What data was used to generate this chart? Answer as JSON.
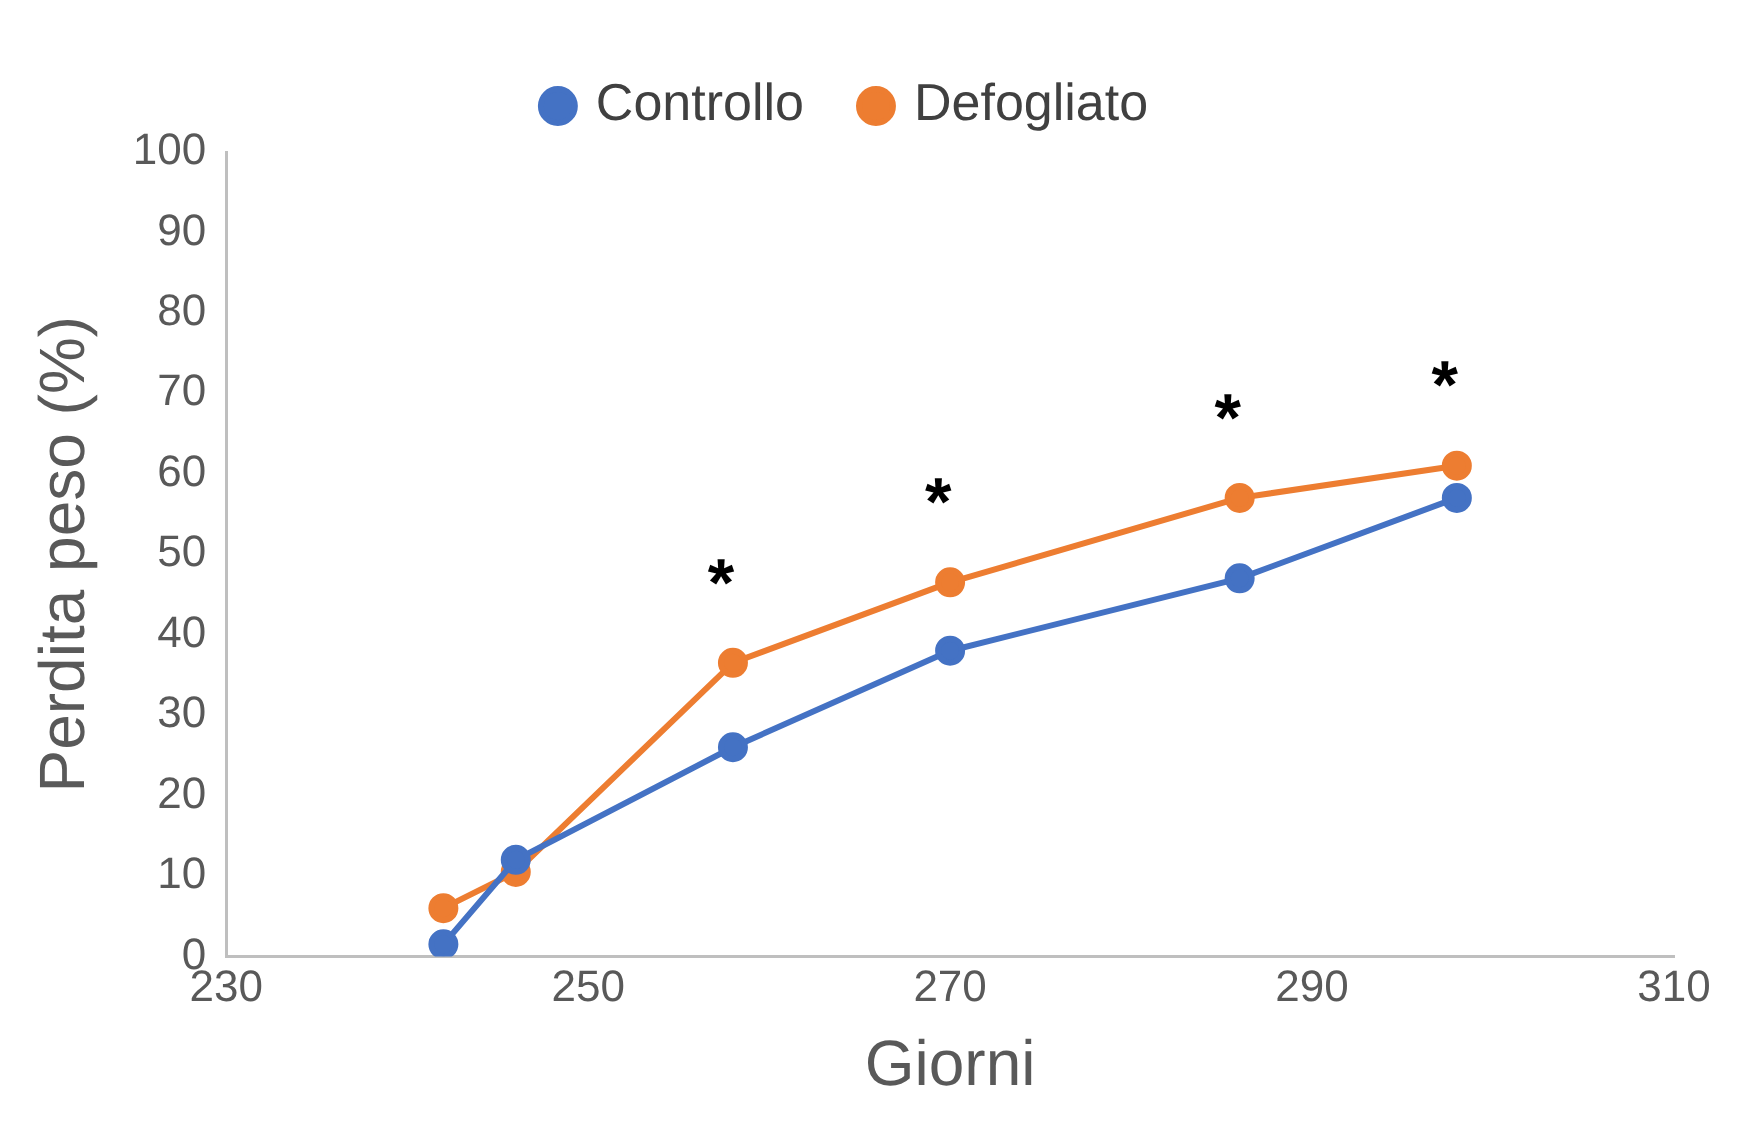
{
  "chart_data": {
    "type": "line",
    "xlabel": "Giorni",
    "ylabel": "Perdita peso (%)",
    "x": [
      242,
      246,
      258,
      270,
      286,
      298
    ],
    "series": [
      {
        "name": "Controllo",
        "color": "#4472c4",
        "values": [
          1.5,
          12,
          26,
          38,
          47,
          57
        ]
      },
      {
        "name": "Defogliato",
        "color": "#ed7d31",
        "values": [
          6,
          10.5,
          36.5,
          46.5,
          57,
          61
        ]
      }
    ],
    "xlim": [
      230,
      310
    ],
    "xticks": [
      230,
      250,
      270,
      290,
      310
    ],
    "ylim": [
      0,
      100
    ],
    "yticks": [
      0,
      10,
      20,
      30,
      40,
      50,
      60,
      70,
      80,
      90,
      100
    ],
    "grid": false,
    "legend": "top",
    "marker": "circle",
    "line_style": "solid",
    "annotations": [
      {
        "text": "*",
        "x": 258,
        "y": 36.5
      },
      {
        "text": "*",
        "x": 270,
        "y": 46.5
      },
      {
        "text": "*",
        "x": 286,
        "y": 57
      },
      {
        "text": "*",
        "x": 298,
        "y": 61
      }
    ]
  }
}
